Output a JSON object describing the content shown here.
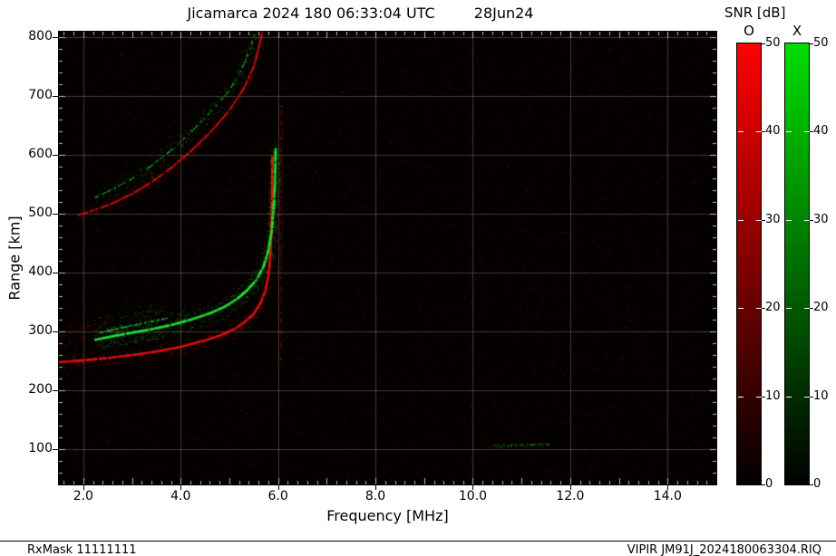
{
  "header": {
    "title": "Jicamarca 2024 180 06:33:04 UTC",
    "date": "28Jun24"
  },
  "footer": {
    "rx_mask": "RxMask 11111111",
    "filename": "VIPIR  JM91J_2024180063304.RIQ"
  },
  "chart_data": {
    "type": "heatmap",
    "title": "Jicamarca 2024 180 06:33:04 UTC",
    "date_label": "28Jun24",
    "xlabel": "Frequency [MHz]",
    "ylabel": "Range [km]",
    "xlim": [
      1.5,
      15.0
    ],
    "ylim": [
      40,
      810
    ],
    "xticks": [
      "2.0",
      "4.0",
      "6.0",
      "8.0",
      "10.0",
      "12.0",
      "14.0"
    ],
    "xtick_values": [
      2,
      4,
      6,
      8,
      10,
      12,
      14
    ],
    "yticks": [
      100,
      200,
      300,
      400,
      500,
      600,
      700,
      800
    ],
    "background": "#050000",
    "grid": {
      "show": true,
      "color": "rgba(155,155,155,0.38)"
    },
    "colorbars": {
      "title": "SNR [dB]",
      "range": [
        0,
        50
      ],
      "ticks": [
        0,
        10,
        20,
        30,
        40,
        50
      ],
      "bars": [
        {
          "label": "O",
          "top_color": "#ff0000"
        },
        {
          "label": "X",
          "top_color": "#00dd00"
        }
      ]
    },
    "traces": [
      {
        "name": "F-region O-mode trace",
        "polarization": "O",
        "color": "#e11212",
        "core": 2.4,
        "spread": 8,
        "density": 2.2,
        "intensity": 0.95,
        "points": [
          [
            1.5,
            248
          ],
          [
            2.0,
            251
          ],
          [
            2.5,
            255
          ],
          [
            3.0,
            260
          ],
          [
            3.5,
            266
          ],
          [
            4.0,
            274
          ],
          [
            4.5,
            285
          ],
          [
            4.8,
            293
          ],
          [
            5.1,
            304
          ],
          [
            5.3,
            315
          ],
          [
            5.5,
            330
          ],
          [
            5.65,
            350
          ],
          [
            5.75,
            372
          ],
          [
            5.81,
            400
          ],
          [
            5.845,
            435
          ],
          [
            5.865,
            475
          ],
          [
            5.875,
            520
          ],
          [
            5.88,
            560
          ],
          [
            5.882,
            600
          ]
        ]
      },
      {
        "name": "F-region X-mode trace",
        "polarization": "X",
        "color": "#23dd33",
        "core": 2.6,
        "spread": 12,
        "density": 3.2,
        "intensity": 0.88,
        "points": [
          [
            2.25,
            286
          ],
          [
            2.6,
            292
          ],
          [
            3.0,
            298
          ],
          [
            3.4,
            304
          ],
          [
            3.8,
            311
          ],
          [
            4.2,
            320
          ],
          [
            4.6,
            331
          ],
          [
            4.9,
            342
          ],
          [
            5.15,
            355
          ],
          [
            5.35,
            369
          ],
          [
            5.55,
            387
          ],
          [
            5.7,
            410
          ],
          [
            5.8,
            438
          ],
          [
            5.87,
            472
          ],
          [
            5.91,
            510
          ],
          [
            5.935,
            550
          ],
          [
            5.945,
            585
          ],
          [
            5.95,
            612
          ]
        ]
      },
      {
        "name": "F-region X-mode spread patch",
        "polarization": "X",
        "color": "#1fcc2e",
        "core": 1.6,
        "spread": 18,
        "density": 3.5,
        "intensity": 0.55,
        "points": [
          [
            2.35,
            298
          ],
          [
            2.7,
            305
          ],
          [
            3.05,
            311
          ],
          [
            3.4,
            317
          ],
          [
            3.75,
            323
          ]
        ]
      },
      {
        "name": "second-hop O-mode trace",
        "polarization": "O",
        "color": "#cf1212",
        "core": 2.0,
        "spread": 7,
        "density": 1.8,
        "intensity": 0.8,
        "points": [
          [
            1.9,
            498
          ],
          [
            2.2,
            506
          ],
          [
            2.6,
            518
          ],
          [
            3.0,
            534
          ],
          [
            3.4,
            554
          ],
          [
            3.8,
            578
          ],
          [
            4.2,
            606
          ],
          [
            4.6,
            638
          ],
          [
            5.0,
            676
          ],
          [
            5.3,
            714
          ],
          [
            5.5,
            750
          ],
          [
            5.62,
            788
          ],
          [
            5.68,
            812
          ]
        ]
      },
      {
        "name": "second-hop X-mode trace",
        "polarization": "X",
        "color": "#1bc42a",
        "core": 1.4,
        "spread": 10,
        "density": 1.3,
        "intensity": 0.45,
        "points": [
          [
            2.25,
            528
          ],
          [
            2.6,
            542
          ],
          [
            3.0,
            560
          ],
          [
            3.4,
            582
          ],
          [
            3.8,
            608
          ],
          [
            4.2,
            638
          ],
          [
            4.6,
            672
          ],
          [
            5.0,
            710
          ],
          [
            5.25,
            745
          ],
          [
            5.42,
            780
          ],
          [
            5.52,
            806
          ]
        ]
      },
      {
        "name": "near-range scatter",
        "polarization": "O",
        "color": "#a81414",
        "core": 1.0,
        "spread": 15,
        "density": 1.2,
        "intensity": 0.35,
        "points": [
          [
            1.55,
            292
          ],
          [
            1.8,
            300
          ],
          [
            2.1,
            309
          ],
          [
            2.4,
            317
          ]
        ]
      },
      {
        "name": "interference line",
        "polarization": "O",
        "color": "#991111",
        "core": 1.2,
        "spread": 3,
        "density": 0.5,
        "intensity": 0.28,
        "points": [
          [
            6.06,
            250
          ],
          [
            6.07,
            690
          ]
        ]
      },
      {
        "name": "E-region echo",
        "polarization": "X",
        "color": "#1bbf2a",
        "core": 1.2,
        "spread": 2.5,
        "density": 0.6,
        "intensity": 0.4,
        "points": [
          [
            10.3,
            106
          ],
          [
            11.0,
            107
          ],
          [
            11.6,
            108
          ]
        ]
      }
    ]
  }
}
